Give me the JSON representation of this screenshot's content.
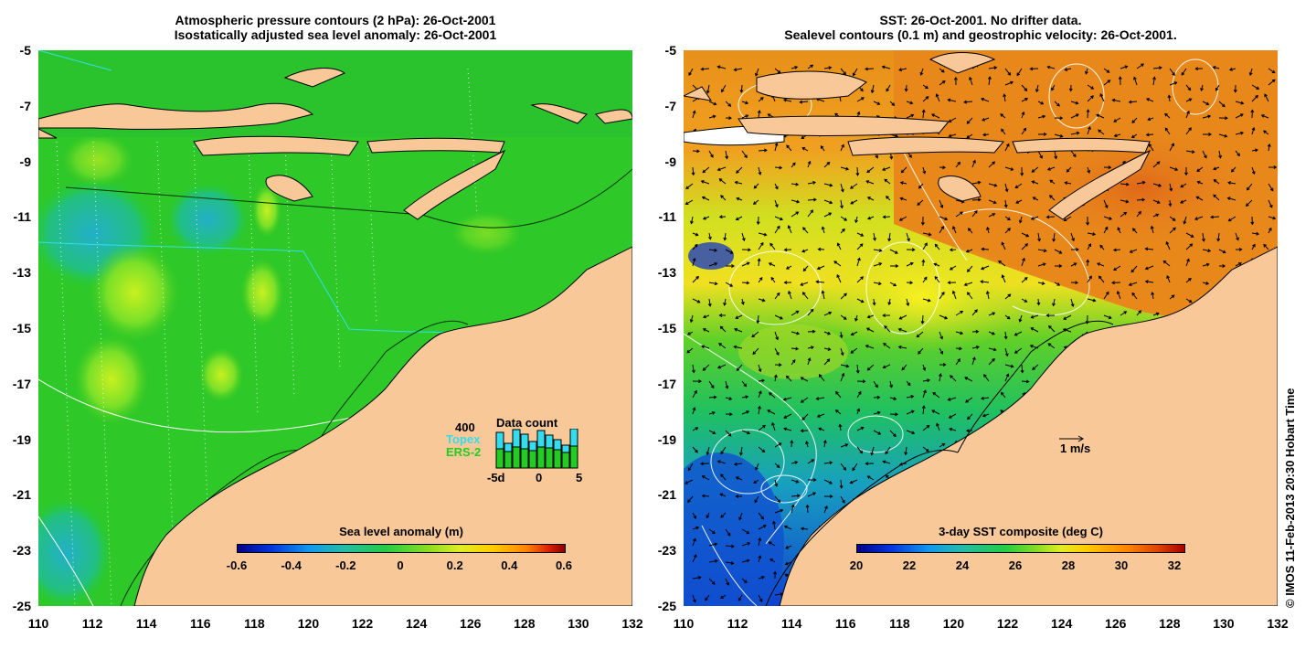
{
  "left_panel": {
    "title_line1": "Atmospheric pressure contours (2 hPa): 26-Oct-2001",
    "title_line2": "Isostatically adjusted sea level anomaly: 26-Oct-2001",
    "colorbar": {
      "title": "Sea level anomaly (m)",
      "ticks": [
        "-0.6",
        "-0.4",
        "-0.2",
        "0",
        "0.2",
        "0.4",
        "0.6"
      ]
    },
    "data_count": {
      "title": "Data count",
      "max_label": "400",
      "topex_label": "Topex",
      "ers_label": "ERS-2",
      "x_ticks": [
        "-5d",
        "0",
        "5"
      ],
      "topex_colour": "#33ddee",
      "ers_colour": "#22cc22"
    }
  },
  "right_panel": {
    "title_line1": "SST: 26-Oct-2001. No drifter data.",
    "title_line2": "Sealevel contours (0.1 m) and geostrophic velocity: 26-Oct-2001.",
    "colorbar": {
      "title": "3-day SST composite (deg C)",
      "ticks": [
        "20",
        "22",
        "24",
        "26",
        "28",
        "30",
        "32"
      ]
    },
    "velocity_scale_label": "1 m/s"
  },
  "y_ticks": [
    "-5",
    "-7",
    "-9",
    "-11",
    "-13",
    "-15",
    "-17",
    "-19",
    "-21",
    "-23",
    "-25"
  ],
  "x_ticks": [
    "110",
    "112",
    "114",
    "116",
    "118",
    "120",
    "122",
    "124",
    "126",
    "128",
    "130",
    "132"
  ],
  "credit": "© IMOS 11-Feb-2013 20:30 Hobart Time",
  "colours": {
    "land": "#f8c898",
    "ocean_green": "#22cc22",
    "sst_orange": "#e88a18"
  }
}
